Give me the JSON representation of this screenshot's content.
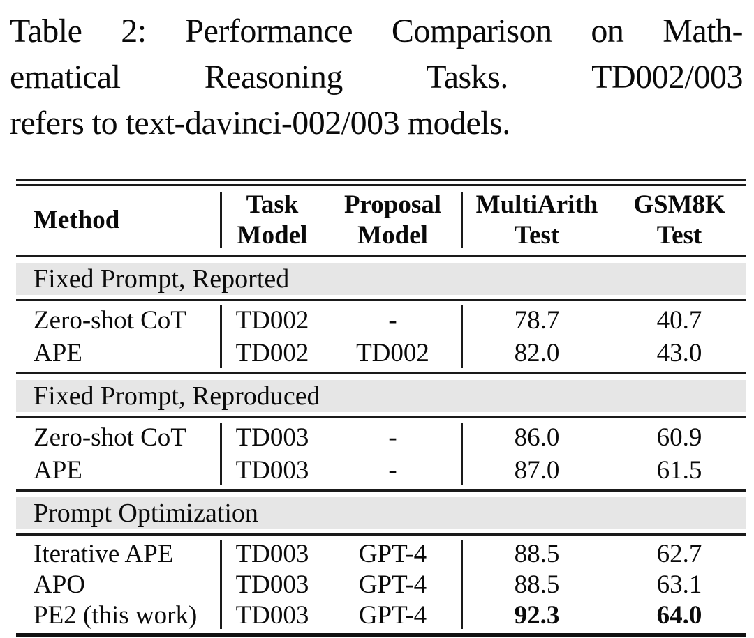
{
  "caption": {
    "lines": [
      "Table 2: Performance Comparison on Math-",
      "ematical Reasoning Tasks. TD002/003",
      "refers to text-davinci-002/003 models."
    ]
  },
  "table": {
    "columns": [
      {
        "label": "Method"
      },
      {
        "line1": "Task",
        "line2": "Model"
      },
      {
        "line1": "Proposal",
        "line2": "Model"
      },
      {
        "line1": "MultiArith",
        "line2": "Test"
      },
      {
        "line1": "GSM8K",
        "line2": "Test"
      }
    ],
    "sections": [
      {
        "header": "Fixed Prompt, Reported",
        "rows": [
          {
            "cells": [
              "Zero-shot CoT",
              "TD002",
              "-",
              "78.7",
              "40.7"
            ]
          },
          {
            "cells": [
              "APE",
              "TD002",
              "TD002",
              "82.0",
              "43.0"
            ]
          }
        ]
      },
      {
        "header": "Fixed Prompt, Reproduced",
        "rows": [
          {
            "cells": [
              "Zero-shot CoT",
              "TD003",
              "-",
              "86.0",
              "60.9"
            ]
          },
          {
            "cells": [
              "APE",
              "TD003",
              "-",
              "87.0",
              "61.5"
            ]
          }
        ]
      },
      {
        "header": "Prompt Optimization",
        "rows": [
          {
            "cells": [
              "Iterative APE",
              "TD003",
              "GPT-4",
              "88.5",
              "62.7"
            ]
          },
          {
            "cells": [
              "APO",
              "TD003",
              "GPT-4",
              "88.5",
              "63.1"
            ]
          },
          {
            "cells": [
              "PE2 (this work)",
              "TD003",
              "GPT-4",
              "92.3",
              "64.0"
            ]
          }
        ]
      }
    ]
  },
  "colors": {
    "section_band": "#e6e6e6",
    "rule": "#1a1a1a",
    "text": "#0a0a0a"
  }
}
